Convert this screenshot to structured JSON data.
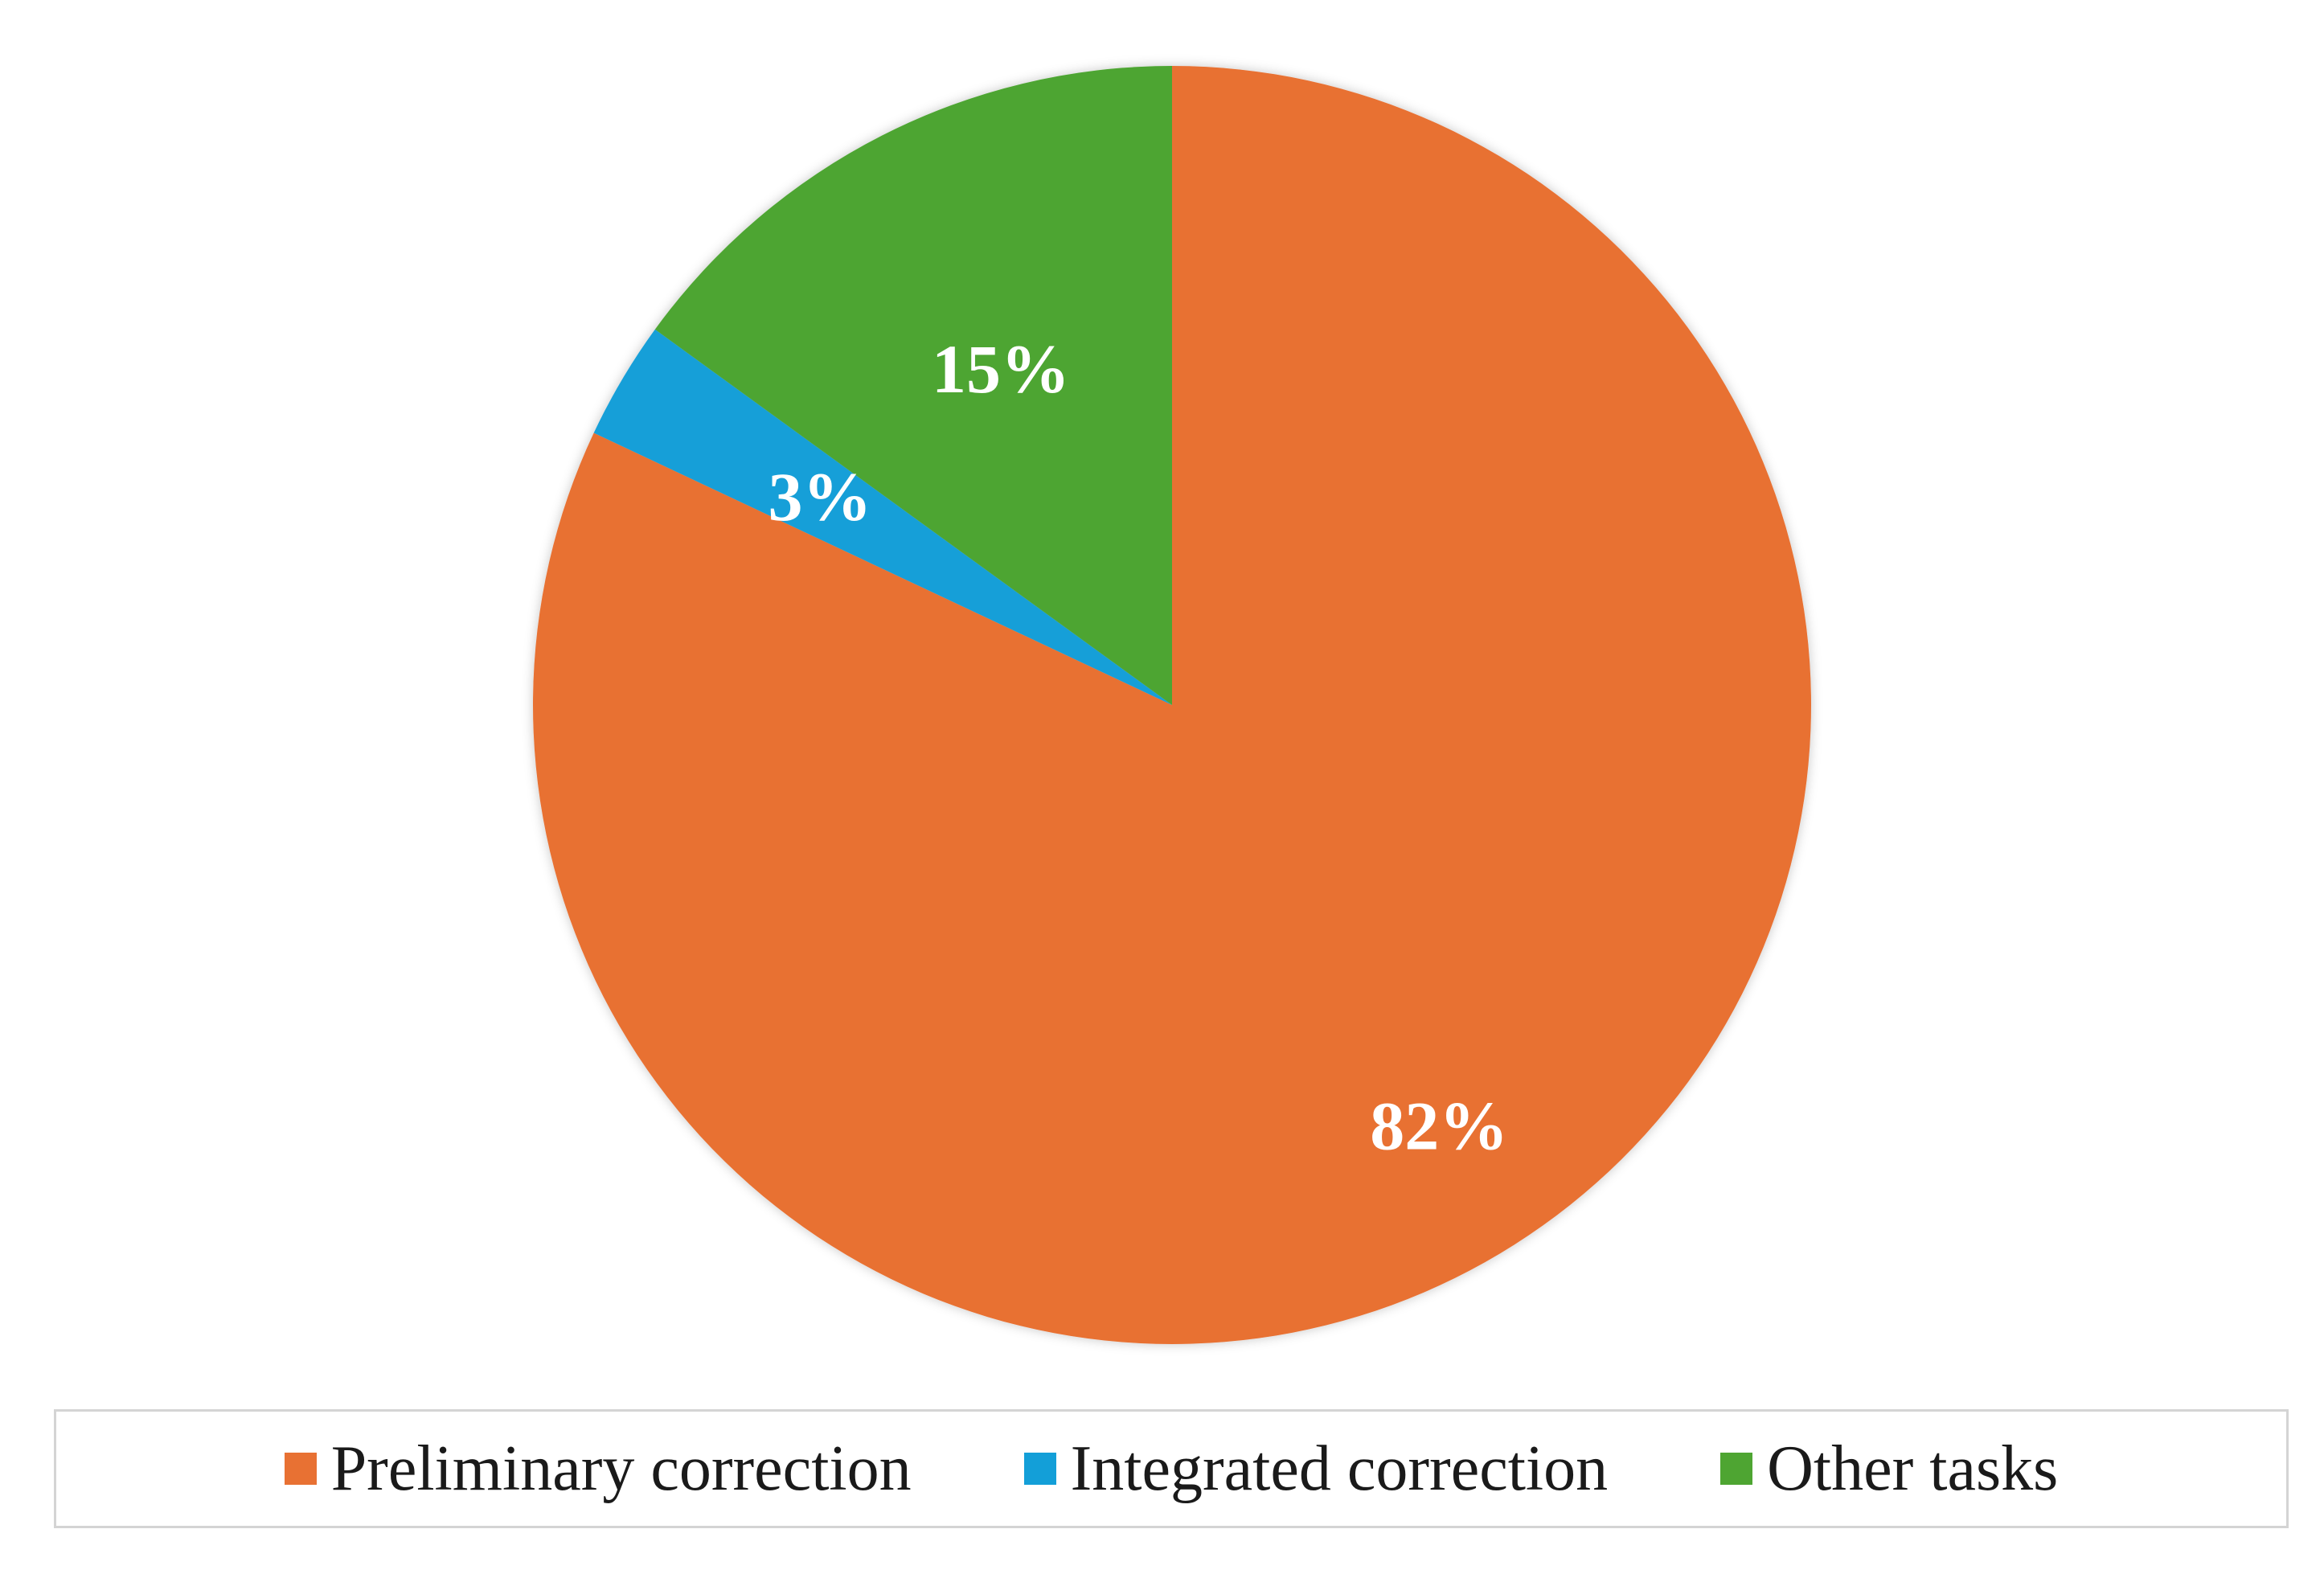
{
  "chart_data": {
    "type": "pie",
    "start_angle_deg": 0,
    "direction": "clockwise",
    "slices": [
      {
        "label": "Preliminary correction",
        "value": 82,
        "data_label": "82%",
        "color": "#E87133"
      },
      {
        "label": "Integrated correction",
        "value": 3,
        "data_label": "3%",
        "color": "#139FD8"
      },
      {
        "label": "Other tasks",
        "value": 15,
        "data_label": "15%",
        "color": "#4EA532"
      }
    ],
    "legend_position": "bottom"
  }
}
